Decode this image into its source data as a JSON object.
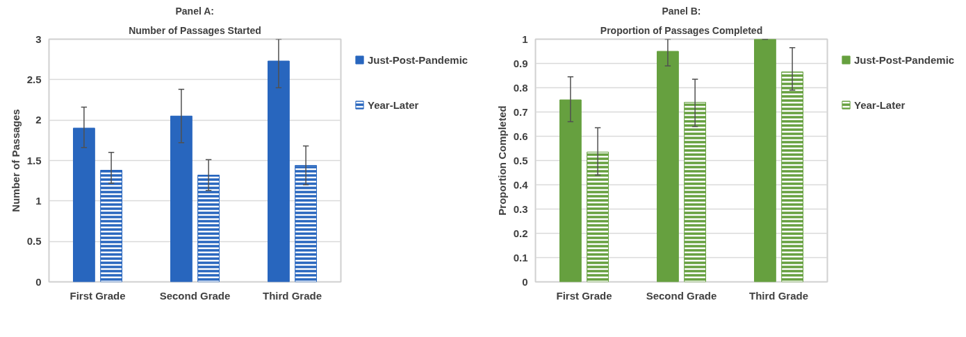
{
  "chart_data": [
    {
      "type": "bar",
      "title": "Panel A:",
      "subtitle": "Number of Passages Started",
      "ylabel": "Number of Passages",
      "categories": [
        "First Grade",
        "Second Grade",
        "Third Grade"
      ],
      "series": [
        {
          "name": "Just-Post-Pandemic",
          "color": "#2866be",
          "values": [
            1.9,
            2.05,
            2.73
          ],
          "errors": [
            [
              1.66,
              2.16
            ],
            [
              1.72,
              2.38
            ],
            [
              2.4,
              3.0
            ]
          ]
        },
        {
          "name": "Year-Later",
          "color": "#2866be",
          "values": [
            1.38,
            1.32,
            1.44
          ],
          "errors": [
            [
              1.22,
              1.6
            ],
            [
              1.13,
              1.51
            ],
            [
              1.2,
              1.68
            ]
          ]
        }
      ],
      "ylim": [
        0,
        3
      ],
      "yticks": [
        0,
        0.5,
        1,
        1.5,
        2,
        2.5,
        3
      ],
      "grid": "y",
      "legend": "right"
    },
    {
      "type": "bar",
      "title": "Panel B:",
      "subtitle": "Proportion of Passages Completed",
      "ylabel": "Proportion Completed",
      "categories": [
        "First Grade",
        "Second Grade",
        "Third Grade"
      ],
      "series": [
        {
          "name": "Just-Post-Pandemic",
          "color": "#66a03f",
          "values": [
            0.75,
            0.95,
            1.0
          ],
          "errors": [
            [
              0.66,
              0.845
            ],
            [
              0.89,
              1.0
            ],
            [
              1.0,
              1.0
            ]
          ]
        },
        {
          "name": "Year-Later",
          "color": "#66a03f",
          "values": [
            0.535,
            0.74,
            0.865
          ],
          "errors": [
            [
              0.44,
              0.635
            ],
            [
              0.64,
              0.835
            ],
            [
              0.79,
              0.965
            ]
          ]
        }
      ],
      "ylim": [
        0,
        1
      ],
      "yticks": [
        0,
        0.1,
        0.2,
        0.3,
        0.4,
        0.5,
        0.6,
        0.7,
        0.8,
        0.9,
        1
      ],
      "grid": "y",
      "legend": "right"
    }
  ]
}
